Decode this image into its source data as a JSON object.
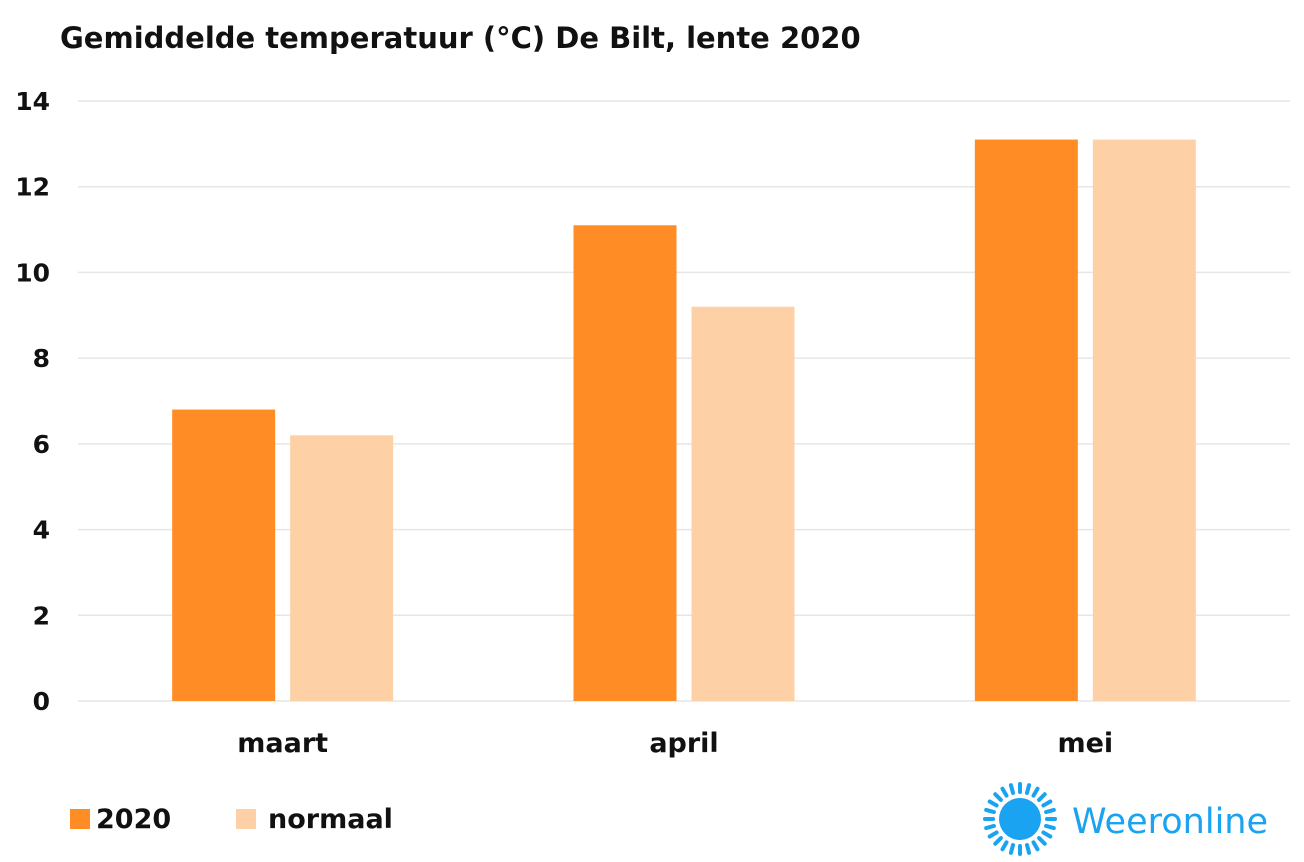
{
  "colors": {
    "series_2020": "#ff8c24",
    "series_normaal": "#fdd1a5",
    "grid": "#e6e6e6",
    "text": "#111111",
    "logo": "#19a3f0"
  },
  "chart_data": {
    "type": "bar",
    "title": "Gemiddelde temperatuur (°C) De Bilt, lente 2020",
    "categories": [
      "maart",
      "april",
      "mei"
    ],
    "series": [
      {
        "name": "2020",
        "values": [
          6.8,
          11.1,
          13.1
        ]
      },
      {
        "name": "normaal",
        "values": [
          6.2,
          9.2,
          13.1
        ]
      }
    ],
    "yticks": [
      "0",
      "2",
      "4",
      "6",
      "8",
      "10",
      "12",
      "14"
    ],
    "ylim": [
      0,
      14
    ],
    "grid": true,
    "legend_position": "bottom-left"
  },
  "logo": {
    "text": "Weeronline",
    "icon": "sun-icon"
  }
}
